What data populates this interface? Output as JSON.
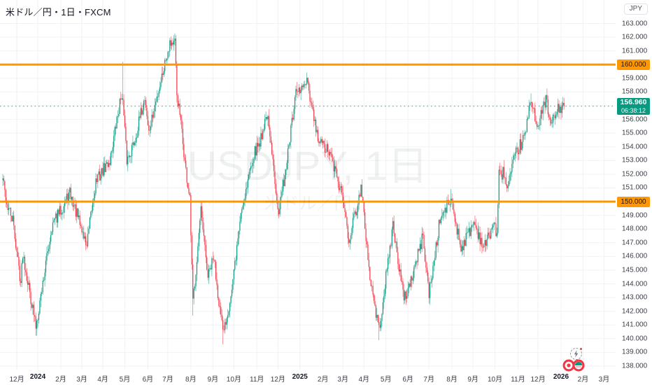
{
  "header": {
    "title": "米ドル／円・1日・FXCM"
  },
  "watermark": {
    "line1": "USDJPY, 1日",
    "line2": "米ドル／円"
  },
  "price_axis": {
    "currency_label": "JPY",
    "min": 138,
    "max": 163,
    "step": 1,
    "decimals": 3
  },
  "last_price": {
    "value": "156.960",
    "countdown": "06:38:12"
  },
  "horizontal_lines": [
    {
      "price": 160,
      "label": "160.000",
      "color": "#FF9800"
    },
    {
      "price": 150,
      "label": "150.000",
      "color": "#FF9800"
    }
  ],
  "x_ticks": [
    "12月",
    "2024",
    "2月",
    "3月",
    "4月",
    "5月",
    "6月",
    "7月",
    "8月",
    "9月",
    "10月",
    "11月",
    "12月",
    "2025",
    "2月",
    "3月",
    "4月",
    "5月",
    "6月",
    "7月",
    "8月",
    "9月",
    "10月",
    "11月",
    "12月",
    "2026",
    "2月",
    "3月"
  ],
  "colors": {
    "up": "#089981",
    "down": "#F23645",
    "grid": "#F0F2F5",
    "axis_text": "#3C4048",
    "current_line": "#089981",
    "last_badge_bg": "#089981",
    "hline": "#FF9800",
    "watermark": "rgba(19,23,34,0.065)",
    "event_red": "#F23645",
    "event_teal": "#089981"
  },
  "chart_data": {
    "type": "candlestick",
    "symbol": "USDJPY",
    "name": "米ドル／円",
    "timeframe": "1日",
    "exchange": "FXCM",
    "ylim": [
      138,
      163
    ],
    "y_tick_step": 1,
    "grid": true,
    "start_date": "2023-11-13",
    "end_date": "2026-01-06",
    "last_close": 156.96,
    "seed": 42,
    "noise": 0.95,
    "anchors": [
      {
        "d": "2023-11-13",
        "p": 151.6
      },
      {
        "d": "2023-11-17",
        "p": 149.8
      },
      {
        "d": "2023-11-27",
        "p": 148.6
      },
      {
        "d": "2023-12-07",
        "p": 144.1
      },
      {
        "d": "2023-12-11",
        "p": 146.3
      },
      {
        "d": "2023-12-28",
        "p": 140.9
      },
      {
        "d": "2024-01-19",
        "p": 148.2
      },
      {
        "d": "2024-02-14",
        "p": 150.6
      },
      {
        "d": "2024-03-08",
        "p": 146.8
      },
      {
        "d": "2024-03-21",
        "p": 151.5
      },
      {
        "d": "2024-04-10",
        "p": 153.0
      },
      {
        "d": "2024-04-26",
        "p": 158.0
      },
      {
        "d": "2024-04-29",
        "p": 157.2
      },
      {
        "d": "2024-05-03",
        "p": 153.0
      },
      {
        "d": "2024-05-15",
        "p": 154.5
      },
      {
        "d": "2024-05-29",
        "p": 157.6
      },
      {
        "d": "2024-06-04",
        "p": 155.0
      },
      {
        "d": "2024-06-28",
        "p": 160.8
      },
      {
        "d": "2024-07-03",
        "p": 161.7
      },
      {
        "d": "2024-07-10",
        "p": 161.5
      },
      {
        "d": "2024-07-12",
        "p": 157.8
      },
      {
        "d": "2024-07-17",
        "p": 156.3
      },
      {
        "d": "2024-07-25",
        "p": 152.2
      },
      {
        "d": "2024-07-31",
        "p": 150.0
      },
      {
        "d": "2024-08-05",
        "p": 142.6
      },
      {
        "d": "2024-08-15",
        "p": 149.2
      },
      {
        "d": "2024-08-26",
        "p": 144.5
      },
      {
        "d": "2024-09-03",
        "p": 145.9
      },
      {
        "d": "2024-09-16",
        "p": 140.3
      },
      {
        "d": "2024-09-27",
        "p": 143.5
      },
      {
        "d": "2024-10-10",
        "p": 149.2
      },
      {
        "d": "2024-10-28",
        "p": 153.3
      },
      {
        "d": "2024-11-06",
        "p": 154.4
      },
      {
        "d": "2024-11-15",
        "p": 156.4
      },
      {
        "d": "2024-11-29",
        "p": 150.4
      },
      {
        "d": "2024-12-03",
        "p": 149.3
      },
      {
        "d": "2024-12-12",
        "p": 152.5
      },
      {
        "d": "2024-12-26",
        "p": 157.8
      },
      {
        "d": "2025-01-10",
        "p": 158.6
      },
      {
        "d": "2025-01-27",
        "p": 154.5
      },
      {
        "d": "2025-02-12",
        "p": 153.5
      },
      {
        "d": "2025-02-28",
        "p": 150.5
      },
      {
        "d": "2025-03-11",
        "p": 147.3
      },
      {
        "d": "2025-03-27",
        "p": 150.9
      },
      {
        "d": "2025-04-03",
        "p": 147.5
      },
      {
        "d": "2025-04-09",
        "p": 144.5
      },
      {
        "d": "2025-04-22",
        "p": 140.6
      },
      {
        "d": "2025-05-02",
        "p": 145.0
      },
      {
        "d": "2025-05-12",
        "p": 148.3
      },
      {
        "d": "2025-05-27",
        "p": 142.8
      },
      {
        "d": "2025-06-06",
        "p": 144.5
      },
      {
        "d": "2025-06-23",
        "p": 147.5
      },
      {
        "d": "2025-07-01",
        "p": 143.2
      },
      {
        "d": "2025-07-16",
        "p": 148.7
      },
      {
        "d": "2025-07-31",
        "p": 150.2
      },
      {
        "d": "2025-08-14",
        "p": 146.6
      },
      {
        "d": "2025-09-02",
        "p": 148.5
      },
      {
        "d": "2025-09-16",
        "p": 146.6
      },
      {
        "d": "2025-09-30",
        "p": 148.5
      },
      {
        "d": "2025-10-03",
        "p": 147.5
      },
      {
        "d": "2025-10-07",
        "p": 151.9
      },
      {
        "d": "2025-10-14",
        "p": 152.2
      },
      {
        "d": "2025-10-17",
        "p": 150.8
      },
      {
        "d": "2025-10-30",
        "p": 153.5
      },
      {
        "d": "2025-11-12",
        "p": 154.8
      },
      {
        "d": "2025-11-20",
        "p": 157.5
      },
      {
        "d": "2025-12-01",
        "p": 155.4
      },
      {
        "d": "2025-12-11",
        "p": 157.6
      },
      {
        "d": "2025-12-17",
        "p": 155.6
      },
      {
        "d": "2025-12-30",
        "p": 156.8
      },
      {
        "d": "2026-01-06",
        "p": 156.96
      }
    ],
    "spikes": [
      {
        "d": "2023-12-28",
        "low": 140.2
      },
      {
        "d": "2024-04-29",
        "high": 160.2
      },
      {
        "d": "2024-07-03",
        "high": 161.95
      },
      {
        "d": "2024-08-05",
        "low": 141.68
      },
      {
        "d": "2024-09-16",
        "low": 139.58
      },
      {
        "d": "2025-04-22",
        "low": 139.89
      },
      {
        "d": "2025-07-31",
        "high": 150.92
      },
      {
        "d": "2025-11-20",
        "high": 157.9
      }
    ]
  }
}
